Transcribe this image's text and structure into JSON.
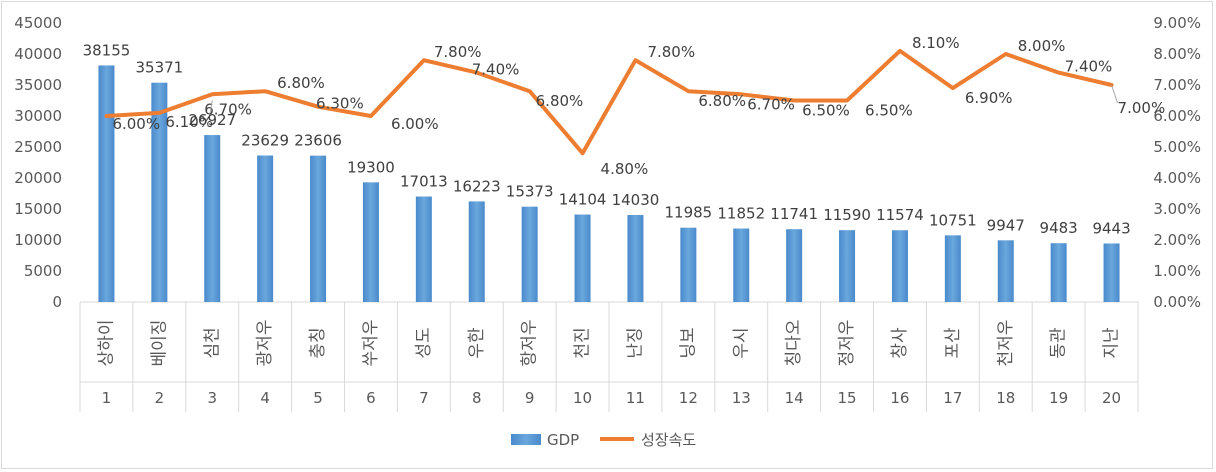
{
  "chart_data": {
    "type": "bar+line",
    "title": "",
    "categories": [
      "1",
      "2",
      "3",
      "4",
      "5",
      "6",
      "7",
      "8",
      "9",
      "10",
      "11",
      "12",
      "13",
      "14",
      "15",
      "16",
      "17",
      "18",
      "19",
      "20"
    ],
    "city_labels": [
      "상하이",
      "베이징",
      "심천",
      "광저우",
      "충칭",
      "쑤저우",
      "성도",
      "우한",
      "항저우",
      "천진",
      "난징",
      "닝보",
      "우시",
      "칭다오",
      "정저우",
      "창사",
      "포산",
      "천저우",
      "동관",
      "지난"
    ],
    "series": [
      {
        "name": "GDP",
        "type": "bar",
        "axis": "left",
        "values": [
          38155,
          35371,
          26927,
          23629,
          23606,
          19300,
          17013,
          16223,
          15373,
          14104,
          14030,
          11985,
          11852,
          11741,
          11590,
          11574,
          10751,
          9947,
          9483,
          9443
        ],
        "labels": [
          "38155",
          "35371",
          "26927",
          "23629",
          "23606",
          "19300",
          "17013",
          "16223",
          "15373",
          "14104",
          "14030",
          "11985",
          "11852",
          "11741",
          "11590",
          "11574",
          "10751",
          "9947",
          "9483",
          "9443"
        ]
      },
      {
        "name": "성장속도",
        "type": "line",
        "axis": "right",
        "values": [
          6.0,
          6.1,
          6.7,
          6.8,
          6.3,
          6.0,
          7.8,
          7.4,
          6.8,
          4.8,
          7.8,
          6.8,
          6.7,
          6.5,
          6.5,
          8.1,
          6.9,
          8.0,
          7.4,
          7.0
        ],
        "labels": [
          "6.00%",
          "6.10%",
          "6.70%",
          "6.80%",
          "6.30%",
          "6.00%",
          "7.80%",
          "7.40%",
          "6.80%",
          "4.80%",
          "7.80%",
          "6.80%",
          "6.70%",
          "6.50%",
          "6.50%",
          "8.10%",
          "6.90%",
          "8.00%",
          "7.40%",
          "7.00%"
        ]
      }
    ],
    "y_left": {
      "ylim": [
        0,
        45000
      ],
      "ticks": [
        "0",
        "5000",
        "10000",
        "15000",
        "20000",
        "25000",
        "30000",
        "35000",
        "40000",
        "45000"
      ]
    },
    "y_right": {
      "ylim": [
        0,
        9
      ],
      "ticks": [
        "0.00%",
        "1.00%",
        "2.00%",
        "3.00%",
        "4.00%",
        "5.00%",
        "6.00%",
        "7.00%",
        "8.00%",
        "9.00%"
      ]
    },
    "grid": false,
    "legend": "bottom-center",
    "colors": {
      "bar": "#5b9bd5",
      "line": "#ed7d31",
      "axis": "#d9d9d9"
    }
  }
}
